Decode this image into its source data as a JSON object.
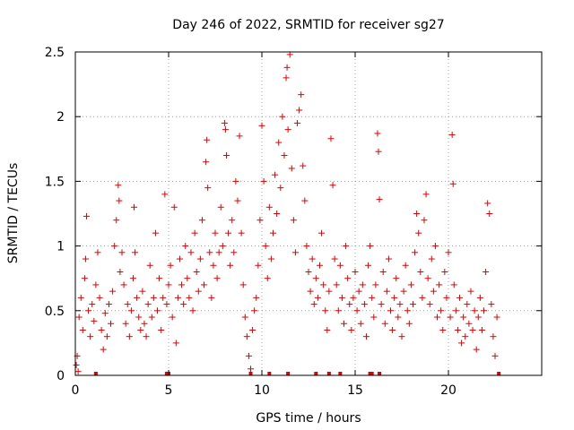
{
  "chart_data": {
    "type": "scatter",
    "title": "Day 246 of 2022, SRMTID for receiver sg27",
    "xlabel": "GPS time / hours",
    "ylabel": "SRMTID / TECUs",
    "xlim": [
      0,
      25
    ],
    "ylim": [
      0,
      2.5
    ],
    "xticks": [
      0,
      5,
      10,
      15,
      20
    ],
    "xtick_labels": [
      "0",
      "5",
      "10",
      "15",
      "20"
    ],
    "yticks": [
      0,
      0.5,
      1,
      1.5,
      2,
      2.5
    ],
    "ytick_labels": [
      "0",
      "0.5",
      "1",
      "1.5",
      "2",
      "2.5"
    ],
    "grid": true,
    "marker": "+",
    "color": "#e00000",
    "series": [
      {
        "name": "SRMTID",
        "points": [
          [
            0.05,
            0.08
          ],
          [
            0.1,
            0.15
          ],
          [
            0.15,
            0.03
          ],
          [
            0.2,
            0.45
          ],
          [
            0.3,
            0.6
          ],
          [
            0.4,
            0.35
          ],
          [
            0.5,
            0.75
          ],
          [
            0.55,
            0.9
          ],
          [
            0.6,
            1.23
          ],
          [
            0.7,
            0.5
          ],
          [
            0.8,
            0.3
          ],
          [
            0.9,
            0.55
          ],
          [
            1.0,
            0.42
          ],
          [
            1.1,
            0.7
          ],
          [
            1.2,
            0.95
          ],
          [
            1.3,
            0.6
          ],
          [
            1.4,
            0.35
          ],
          [
            1.5,
            0.2
          ],
          [
            1.6,
            0.48
          ],
          [
            1.7,
            0.3
          ],
          [
            1.8,
            0.55
          ],
          [
            1.9,
            0.4
          ],
          [
            2.0,
            0.65
          ],
          [
            2.1,
            1.0
          ],
          [
            2.2,
            1.2
          ],
          [
            2.3,
            1.47
          ],
          [
            2.35,
            1.35
          ],
          [
            2.4,
            0.8
          ],
          [
            2.5,
            0.95
          ],
          [
            2.6,
            0.7
          ],
          [
            2.7,
            0.4
          ],
          [
            2.8,
            0.55
          ],
          [
            2.9,
            0.3
          ],
          [
            3.0,
            0.5
          ],
          [
            3.1,
            0.75
          ],
          [
            3.15,
            1.3
          ],
          [
            3.2,
            0.95
          ],
          [
            3.3,
            0.6
          ],
          [
            3.4,
            0.45
          ],
          [
            3.5,
            0.35
          ],
          [
            3.6,
            0.65
          ],
          [
            3.7,
            0.4
          ],
          [
            3.8,
            0.3
          ],
          [
            3.9,
            0.55
          ],
          [
            4.0,
            0.85
          ],
          [
            4.1,
            0.45
          ],
          [
            4.2,
            0.6
          ],
          [
            4.3,
            1.1
          ],
          [
            4.4,
            0.5
          ],
          [
            4.5,
            0.75
          ],
          [
            4.6,
            0.35
          ],
          [
            4.7,
            0.6
          ],
          [
            4.8,
            1.4
          ],
          [
            4.9,
            0.55
          ],
          [
            5.0,
            0.7
          ],
          [
            5.1,
            0.85
          ],
          [
            5.2,
            0.45
          ],
          [
            5.3,
            1.3
          ],
          [
            5.4,
            0.25
          ],
          [
            5.5,
            0.6
          ],
          [
            5.6,
            0.9
          ],
          [
            5.7,
            0.7
          ],
          [
            5.8,
            0.55
          ],
          [
            5.9,
            1.0
          ],
          [
            6.0,
            0.75
          ],
          [
            6.1,
            0.6
          ],
          [
            6.2,
            0.95
          ],
          [
            6.3,
            0.5
          ],
          [
            6.4,
            1.1
          ],
          [
            6.5,
            0.8
          ],
          [
            6.6,
            0.65
          ],
          [
            6.7,
            0.9
          ],
          [
            6.8,
            1.2
          ],
          [
            6.9,
            0.7
          ],
          [
            7.0,
            1.65
          ],
          [
            7.05,
            1.82
          ],
          [
            7.1,
            1.45
          ],
          [
            7.2,
            0.95
          ],
          [
            7.3,
            0.6
          ],
          [
            7.4,
            0.85
          ],
          [
            7.5,
            1.1
          ],
          [
            7.6,
            0.75
          ],
          [
            7.7,
            0.95
          ],
          [
            7.8,
            1.3
          ],
          [
            7.9,
            1.0
          ],
          [
            8.0,
            1.95
          ],
          [
            8.05,
            1.9
          ],
          [
            8.1,
            1.7
          ],
          [
            8.2,
            1.1
          ],
          [
            8.3,
            0.85
          ],
          [
            8.4,
            1.2
          ],
          [
            8.5,
            0.95
          ],
          [
            8.6,
            1.5
          ],
          [
            8.7,
            1.35
          ],
          [
            8.8,
            1.85
          ],
          [
            8.9,
            1.1
          ],
          [
            9.0,
            0.7
          ],
          [
            9.1,
            0.45
          ],
          [
            9.2,
            0.3
          ],
          [
            9.3,
            0.15
          ],
          [
            9.4,
            0.05
          ],
          [
            9.5,
            0.35
          ],
          [
            9.6,
            0.5
          ],
          [
            9.7,
            0.6
          ],
          [
            9.8,
            0.85
          ],
          [
            9.9,
            1.2
          ],
          [
            10.0,
            1.93
          ],
          [
            10.1,
            1.5
          ],
          [
            10.2,
            1.0
          ],
          [
            10.3,
            0.75
          ],
          [
            10.4,
            1.3
          ],
          [
            10.5,
            0.9
          ],
          [
            10.6,
            1.1
          ],
          [
            10.7,
            1.55
          ],
          [
            10.8,
            1.25
          ],
          [
            10.9,
            1.8
          ],
          [
            11.0,
            1.45
          ],
          [
            11.1,
            2.0
          ],
          [
            11.2,
            1.7
          ],
          [
            11.3,
            2.3
          ],
          [
            11.35,
            2.38
          ],
          [
            11.4,
            1.9
          ],
          [
            11.5,
            2.48
          ],
          [
            11.6,
            1.6
          ],
          [
            11.7,
            1.2
          ],
          [
            11.8,
            0.95
          ],
          [
            11.9,
            1.95
          ],
          [
            12.0,
            2.05
          ],
          [
            12.1,
            2.17
          ],
          [
            12.2,
            1.62
          ],
          [
            12.3,
            1.35
          ],
          [
            12.4,
            1.0
          ],
          [
            12.5,
            0.8
          ],
          [
            12.6,
            0.65
          ],
          [
            12.7,
            0.9
          ],
          [
            12.8,
            0.55
          ],
          [
            12.9,
            0.75
          ],
          [
            13.0,
            0.6
          ],
          [
            13.1,
            0.85
          ],
          [
            13.2,
            1.1
          ],
          [
            13.3,
            0.7
          ],
          [
            13.4,
            0.5
          ],
          [
            13.5,
            0.35
          ],
          [
            13.6,
            0.65
          ],
          [
            13.7,
            1.83
          ],
          [
            13.8,
            1.47
          ],
          [
            13.9,
            0.9
          ],
          [
            14.0,
            0.7
          ],
          [
            14.1,
            0.5
          ],
          [
            14.2,
            0.85
          ],
          [
            14.3,
            0.6
          ],
          [
            14.4,
            0.4
          ],
          [
            14.5,
            1.0
          ],
          [
            14.6,
            0.75
          ],
          [
            14.7,
            0.55
          ],
          [
            14.8,
            0.35
          ],
          [
            14.9,
            0.6
          ],
          [
            15.0,
            0.8
          ],
          [
            15.1,
            0.5
          ],
          [
            15.2,
            0.65
          ],
          [
            15.3,
            0.4
          ],
          [
            15.4,
            0.7
          ],
          [
            15.5,
            0.55
          ],
          [
            15.6,
            0.3
          ],
          [
            15.7,
            0.85
          ],
          [
            15.8,
            1.0
          ],
          [
            15.9,
            0.6
          ],
          [
            16.0,
            0.45
          ],
          [
            16.1,
            0.7
          ],
          [
            16.2,
            1.87
          ],
          [
            16.25,
            1.73
          ],
          [
            16.3,
            1.36
          ],
          [
            16.4,
            0.55
          ],
          [
            16.5,
            0.8
          ],
          [
            16.6,
            0.4
          ],
          [
            16.7,
            0.65
          ],
          [
            16.8,
            0.9
          ],
          [
            16.9,
            0.5
          ],
          [
            17.0,
            0.35
          ],
          [
            17.1,
            0.6
          ],
          [
            17.2,
            0.75
          ],
          [
            17.3,
            0.45
          ],
          [
            17.4,
            0.55
          ],
          [
            17.5,
            0.3
          ],
          [
            17.6,
            0.65
          ],
          [
            17.7,
            0.85
          ],
          [
            17.8,
            0.5
          ],
          [
            17.9,
            0.4
          ],
          [
            18.0,
            0.7
          ],
          [
            18.1,
            0.55
          ],
          [
            18.2,
            0.95
          ],
          [
            18.3,
            1.25
          ],
          [
            18.4,
            1.1
          ],
          [
            18.5,
            0.8
          ],
          [
            18.6,
            0.6
          ],
          [
            18.7,
            1.2
          ],
          [
            18.8,
            1.4
          ],
          [
            18.9,
            0.75
          ],
          [
            19.0,
            0.55
          ],
          [
            19.1,
            0.9
          ],
          [
            19.2,
            0.65
          ],
          [
            19.3,
            1.0
          ],
          [
            19.4,
            0.45
          ],
          [
            19.5,
            0.7
          ],
          [
            19.6,
            0.5
          ],
          [
            19.7,
            0.35
          ],
          [
            19.8,
            0.8
          ],
          [
            19.9,
            0.6
          ],
          [
            20.0,
            0.95
          ],
          [
            20.1,
            0.45
          ],
          [
            20.2,
            1.86
          ],
          [
            20.25,
            1.48
          ],
          [
            20.3,
            0.7
          ],
          [
            20.4,
            0.5
          ],
          [
            20.5,
            0.35
          ],
          [
            20.6,
            0.6
          ],
          [
            20.7,
            0.25
          ],
          [
            20.8,
            0.45
          ],
          [
            20.9,
            0.3
          ],
          [
            21.0,
            0.55
          ],
          [
            21.1,
            0.4
          ],
          [
            21.2,
            0.65
          ],
          [
            21.3,
            0.35
          ],
          [
            21.4,
            0.5
          ],
          [
            21.5,
            0.2
          ],
          [
            21.6,
            0.45
          ],
          [
            21.7,
            0.6
          ],
          [
            21.8,
            0.35
          ],
          [
            21.9,
            0.5
          ],
          [
            22.0,
            0.8
          ],
          [
            22.1,
            1.33
          ],
          [
            22.2,
            1.25
          ],
          [
            22.3,
            0.55
          ],
          [
            22.4,
            0.3
          ],
          [
            22.5,
            0.15
          ],
          [
            22.6,
            0.45
          ]
        ]
      }
    ],
    "zero_points": [
      1.1,
      4.9,
      5.0,
      9.4,
      10.4,
      11.4,
      12.9,
      13.6,
      14.2,
      15.8,
      15.9,
      16.3,
      22.7
    ]
  }
}
